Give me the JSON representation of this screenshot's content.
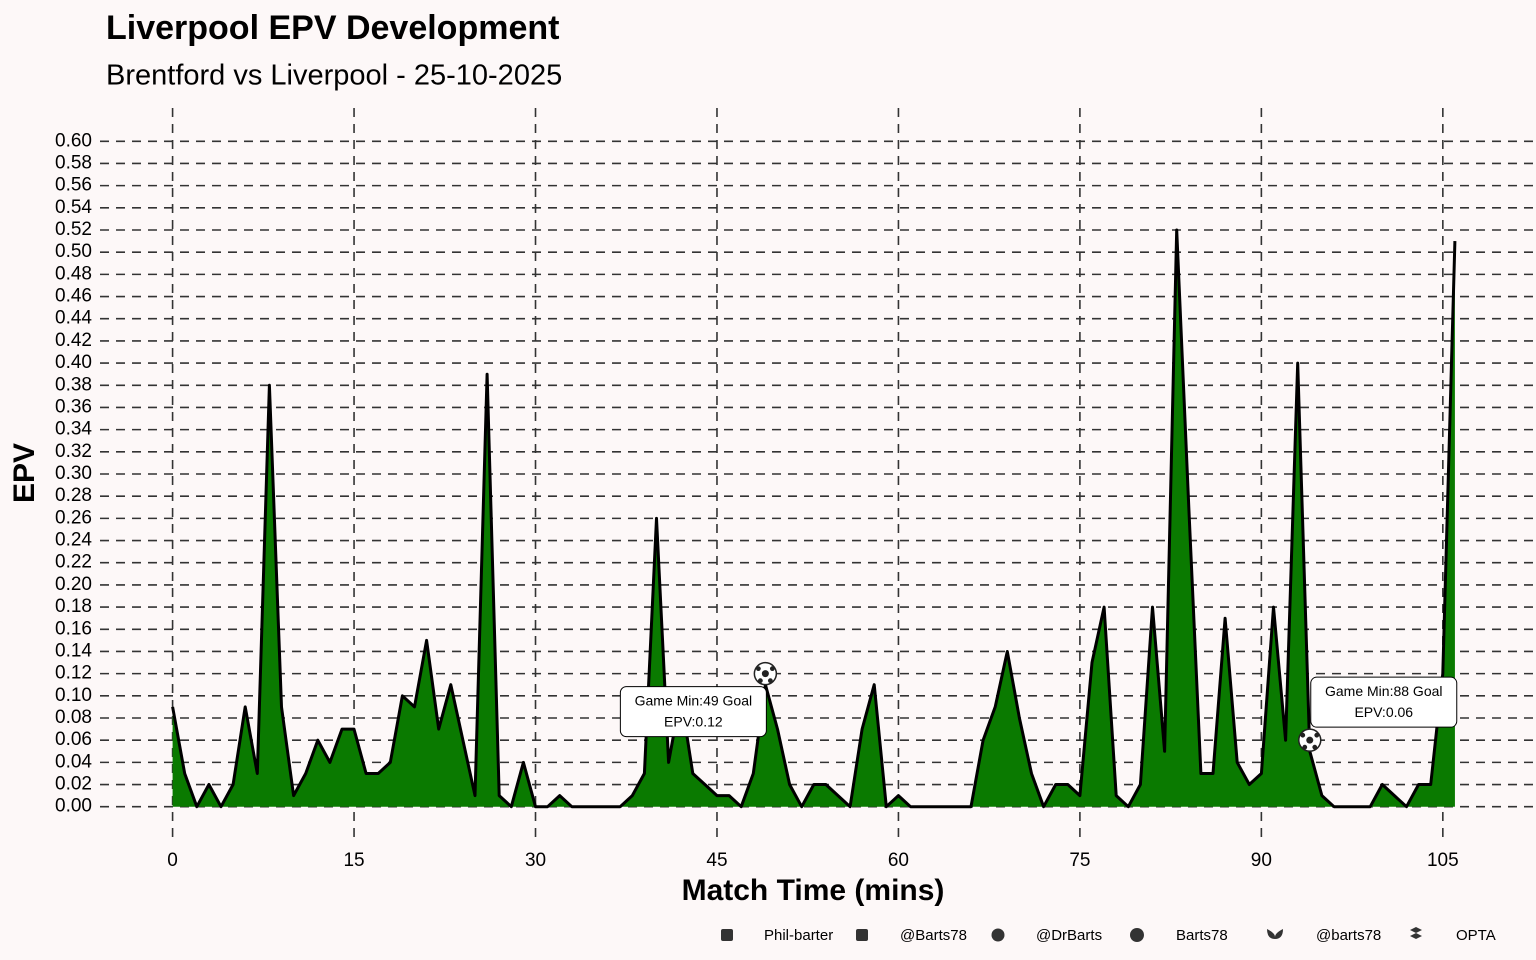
{
  "chart_data": {
    "type": "area",
    "title": "Liverpool EPV Development",
    "subtitle": "Brentford vs Liverpool - 25-10-2025",
    "xlabel": "Match Time (mins)",
    "ylabel": "EPV",
    "x": [
      0,
      1,
      2,
      3,
      4,
      5,
      6,
      7,
      8,
      9,
      10,
      11,
      12,
      13,
      14,
      15,
      16,
      17,
      18,
      19,
      20,
      21,
      22,
      23,
      24,
      25,
      26,
      27,
      28,
      29,
      30,
      31,
      32,
      33,
      34,
      35,
      36,
      37,
      38,
      39,
      40,
      41,
      42,
      43,
      44,
      45,
      46,
      47,
      48,
      49,
      50,
      51,
      52,
      53,
      54,
      55,
      56,
      57,
      58,
      59,
      60,
      61,
      62,
      63,
      64,
      65,
      66,
      67,
      68,
      69,
      70,
      71,
      72,
      73,
      74,
      75,
      76,
      77,
      78,
      79,
      80,
      81,
      82,
      83,
      84,
      85,
      86,
      87,
      88,
      89,
      90,
      91,
      92,
      93,
      94,
      95,
      96,
      97,
      98,
      99,
      100,
      101,
      102,
      103,
      104,
      105,
      106
    ],
    "series": [
      {
        "name": "EPV",
        "color": "#0a7a00",
        "line_color": "#000000",
        "values": [
          0.09,
          0.03,
          0.0,
          0.02,
          0.0,
          0.02,
          0.09,
          0.03,
          0.38,
          0.09,
          0.01,
          0.03,
          0.06,
          0.04,
          0.07,
          0.07,
          0.03,
          0.03,
          0.04,
          0.1,
          0.09,
          0.15,
          0.07,
          0.11,
          0.06,
          0.01,
          0.39,
          0.01,
          0.0,
          0.04,
          0.0,
          0.0,
          0.01,
          0.0,
          0.0,
          0.0,
          0.0,
          0.0,
          0.01,
          0.03,
          0.26,
          0.04,
          0.1,
          0.03,
          0.02,
          0.01,
          0.01,
          0.0,
          0.03,
          0.11,
          0.07,
          0.02,
          0.0,
          0.02,
          0.02,
          0.01,
          0.0,
          0.07,
          0.11,
          0.0,
          0.01,
          0.0,
          0.0,
          0.0,
          0.0,
          0.0,
          0.0,
          0.06,
          0.09,
          0.14,
          0.08,
          0.03,
          0.0,
          0.02,
          0.02,
          0.01,
          0.13,
          0.18,
          0.01,
          0.0,
          0.02,
          0.18,
          0.05,
          0.52,
          0.27,
          0.03,
          0.03,
          0.17,
          0.04,
          0.02,
          0.03,
          0.18,
          0.06,
          0.4,
          0.05,
          0.01,
          0.0,
          0.0,
          0.0,
          0.0,
          0.02,
          0.01,
          0.0,
          0.02,
          0.02,
          0.12,
          0.51
        ]
      }
    ],
    "annotations": [
      {
        "x": 49,
        "y": 0.12,
        "text": [
          "Game Min:49 Goal",
          "EPV:0.12"
        ]
      },
      {
        "x": 94,
        "y": 0.06,
        "text": [
          "Game Min:88 Goal",
          "EPV:0.06"
        ]
      }
    ],
    "xlim": [
      -6,
      110.8
    ],
    "xticks": [
      0,
      15,
      30,
      45,
      60,
      75,
      90,
      105
    ],
    "ylim": [
      -0.03,
      0.63
    ],
    "yticks": [
      {
        "value": 0,
        "label": "0.00"
      },
      {
        "value": 0.02,
        "label": "0.02"
      },
      {
        "value": 0.04,
        "label": "0.04"
      },
      {
        "value": 0.06,
        "label": "0.06"
      },
      {
        "value": 0.08,
        "label": "0.08"
      },
      {
        "value": 0.1,
        "label": "0.10"
      },
      {
        "value": 0.12,
        "label": "0.12"
      },
      {
        "value": 0.14,
        "label": "0.14"
      },
      {
        "value": 0.16,
        "label": "0.16"
      },
      {
        "value": 0.18,
        "label": "0.18"
      },
      {
        "value": 0.2,
        "label": "0.20"
      },
      {
        "value": 0.22,
        "label": "0.22"
      },
      {
        "value": 0.24,
        "label": "0.24"
      },
      {
        "value": 0.26,
        "label": "0.26"
      },
      {
        "value": 0.28,
        "label": "0.28"
      },
      {
        "value": 0.3,
        "label": "0.30"
      },
      {
        "value": 0.32,
        "label": "0.32"
      },
      {
        "value": 0.34,
        "label": "0.34"
      },
      {
        "value": 0.36,
        "label": "0.36"
      },
      {
        "value": 0.38,
        "label": "0.38"
      },
      {
        "value": 0.4,
        "label": "0.40"
      },
      {
        "value": 0.42,
        "label": "0.42"
      },
      {
        "value": 0.44,
        "label": "0.44"
      },
      {
        "value": 0.46,
        "label": "0.46"
      },
      {
        "value": 0.48,
        "label": "0.48"
      },
      {
        "value": 0.5,
        "label": "0.50"
      },
      {
        "value": 0.52,
        "label": "0.52"
      },
      {
        "value": 0.54,
        "label": "0.54"
      },
      {
        "value": 0.56,
        "label": "0.56"
      },
      {
        "value": 0.58,
        "label": "0.58"
      },
      {
        "value": 0.6,
        "label": "0.60"
      }
    ],
    "grid": true,
    "footer": [
      "Phil-barter",
      "@Barts78",
      "@DrBarts",
      "Barts78",
      "@barts78",
      "OPTA"
    ]
  }
}
